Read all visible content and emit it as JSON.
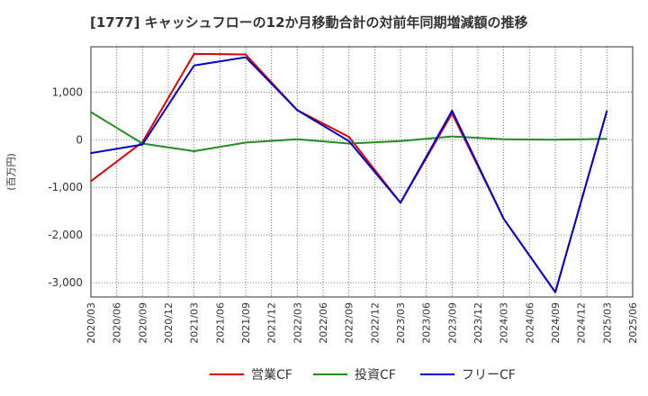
{
  "chart_data": {
    "type": "line",
    "title": "[1777]  キャッシュフローの12か月移動合計の対前年同期増減額の推移",
    "ylabel": "(百万円)",
    "xlabel": "",
    "ylim": [
      -3300,
      1950
    ],
    "yticks": [
      1000,
      0,
      -1000,
      -2000,
      -3000
    ],
    "ytick_labels": [
      "1,000",
      "0",
      "-1,000",
      "-2,000",
      "-3,000"
    ],
    "categories": [
      "2020/03",
      "2020/06",
      "2020/09",
      "2020/12",
      "2021/03",
      "2021/06",
      "2021/09",
      "2021/12",
      "2022/03",
      "2022/06",
      "2022/09",
      "2022/12",
      "2023/03",
      "2023/06",
      "2023/09",
      "2023/12",
      "2024/03",
      "2024/06",
      "2024/09",
      "2024/12",
      "2025/03",
      "2025/06"
    ],
    "series": [
      {
        "name": "営業CF",
        "color": "#dd0000",
        "values": [
          -870,
          null,
          -50,
          null,
          1800,
          null,
          1790,
          null,
          620,
          null,
          60,
          null,
          -1320,
          null,
          550,
          null,
          -1660,
          null,
          -3200,
          null,
          600,
          null
        ]
      },
      {
        "name": "投資CF",
        "color": "#228B22",
        "values": [
          580,
          null,
          -80,
          null,
          -240,
          null,
          -60,
          null,
          10,
          null,
          -80,
          null,
          -30,
          null,
          70,
          null,
          10,
          null,
          0,
          null,
          20,
          null
        ]
      },
      {
        "name": "フリーCF",
        "color": "#0000cc",
        "values": [
          -280,
          null,
          -100,
          null,
          1560,
          null,
          1730,
          null,
          620,
          null,
          -30,
          null,
          -1320,
          null,
          610,
          null,
          -1660,
          null,
          -3200,
          null,
          600,
          null
        ]
      }
    ],
    "grid": true,
    "legend": "bottom-center"
  }
}
